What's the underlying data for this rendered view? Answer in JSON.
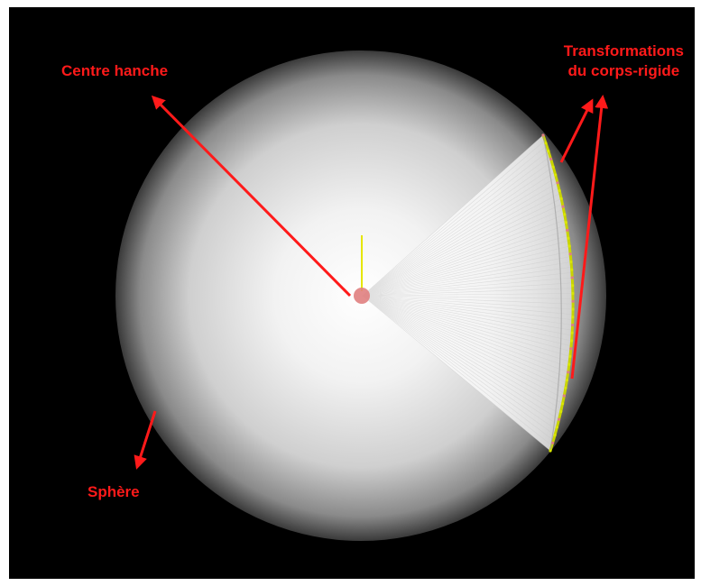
{
  "labels": {
    "centre": "Centre hanche",
    "transformations_line1": "Transformations",
    "transformations_line2": "du corps-rigide",
    "sphere": "Sphère"
  },
  "colors": {
    "background": "#000000",
    "annotation": "#ff1a1a",
    "sphere_highlight": "#ffffff",
    "sphere_edge": "#3a3a3a",
    "cone": "#ffffff",
    "rim_markers": "#d9e600",
    "axis": "#e6e600",
    "hip_center": "#e08080"
  }
}
